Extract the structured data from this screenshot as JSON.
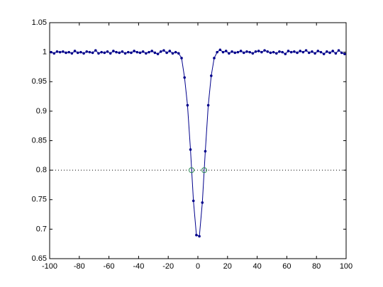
{
  "chart_data": {
    "type": "line",
    "x": [
      -99,
      -97,
      -95,
      -93,
      -91,
      -89,
      -87,
      -85,
      -83,
      -81,
      -79,
      -77,
      -75,
      -73,
      -71,
      -69,
      -67,
      -65,
      -63,
      -61,
      -59,
      -57,
      -55,
      -53,
      -51,
      -49,
      -47,
      -45,
      -43,
      -41,
      -39,
      -37,
      -35,
      -33,
      -31,
      -29,
      -27,
      -25,
      -23,
      -21,
      -19,
      -17,
      -15,
      -13,
      -11,
      -9,
      -7,
      -5,
      -3,
      -1,
      1,
      3,
      5,
      7,
      9,
      11,
      13,
      15,
      17,
      19,
      21,
      23,
      25,
      27,
      29,
      31,
      33,
      35,
      37,
      39,
      41,
      43,
      45,
      47,
      49,
      51,
      53,
      55,
      57,
      59,
      61,
      63,
      65,
      67,
      69,
      71,
      73,
      75,
      77,
      79,
      81,
      83,
      85,
      87,
      89,
      91,
      93,
      95,
      97,
      99
    ],
    "series": [
      {
        "color": "#00008b",
        "values": [
          1.0,
          0.998,
          1.001,
          1.0,
          1.001,
          0.999,
          1.0,
          0.998,
          1.002,
          0.999,
          1.0,
          0.998,
          1.001,
          1.0,
          0.999,
          1.003,
          0.998,
          1.0,
          0.999,
          1.001,
          0.998,
          1.002,
          1.0,
          0.999,
          1.001,
          0.998,
          1.0,
          0.999,
          1.002,
          1.0,
          0.999,
          1.001,
          0.998,
          1.0,
          1.002,
          0.999,
          0.997,
          1.001,
          1.003,
          0.999,
          1.002,
          0.998,
          1.0,
          0.998,
          0.99,
          0.957,
          0.91,
          0.835,
          0.748,
          0.69,
          0.688,
          0.745,
          0.832,
          0.91,
          0.96,
          0.99,
          1.0,
          1.004,
          1.0,
          1.002,
          0.998,
          1.001,
          0.999,
          1.0,
          1.002,
          0.999,
          1.001,
          1.0,
          0.998,
          1.001,
          1.002,
          1.0,
          1.003,
          1.001,
          0.999,
          1.0,
          0.998,
          1.001,
          1.0,
          0.997,
          1.002,
          1.0,
          1.001,
          0.999,
          1.002,
          1.0,
          1.003,
          0.999,
          1.001,
          0.998,
          1.002,
          1.0,
          0.997,
          1.001,
          0.999,
          1.002,
          0.998,
          1.003,
          0.999,
          0.997
        ]
      }
    ],
    "markers": {
      "x": [
        -4.3,
        4.3
      ],
      "values": [
        0.8,
        0.8
      ],
      "color": "#2e8b57"
    },
    "hline": {
      "value": 0.8,
      "color": "#000000"
    },
    "xlim": [
      -100,
      100
    ],
    "xticks": [
      -100,
      -80,
      -60,
      -40,
      -20,
      0,
      20,
      40,
      60,
      80,
      100
    ],
    "ylim": [
      0.65,
      1.05
    ],
    "yticks": [
      0.65,
      0.7,
      0.75,
      0.8,
      0.85,
      0.9,
      0.95,
      1,
      1.05
    ]
  }
}
